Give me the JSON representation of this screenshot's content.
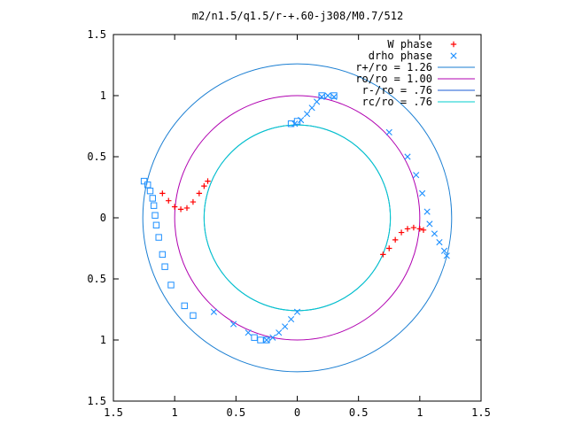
{
  "chart_data": {
    "type": "scatter",
    "title": "m2/n1.5/q1.5/r-+.60-j308/M0.7/512",
    "xlabel": "",
    "ylabel": "",
    "xlim": [
      -1.5,
      1.5
    ],
    "ylim": [
      -1.5,
      1.5
    ],
    "x_ticks": [
      -1.5,
      -1,
      -0.5,
      0,
      0.5,
      1,
      1.5
    ],
    "y_ticks": [
      -1.5,
      -1,
      -0.5,
      0,
      0.5,
      1,
      1.5
    ],
    "x_tick_labels": [
      "1.5",
      "1",
      "0.5",
      "0",
      "0.5",
      "1",
      "1.5"
    ],
    "y_tick_labels": [
      "1.5",
      "1",
      "0.5",
      "0",
      "0.5",
      "1",
      "1.5"
    ],
    "grid": false,
    "legend_position": "top-right",
    "legend": [
      {
        "label": "W phase",
        "marker": "+",
        "color": "#ff0000"
      },
      {
        "label": "drho phase",
        "marker": "x",
        "color": "#1e90ff"
      },
      {
        "label": "r+/ro = 1.26",
        "marker": "line",
        "color": "#1a7ed2"
      },
      {
        "label": "ro/ro = 1.00",
        "marker": "line",
        "color": "#b000b0"
      },
      {
        "label": "r-/ro = .76",
        "marker": "line",
        "color": "#1a5bd6"
      },
      {
        "label": "rc/ro = .76",
        "marker": "line",
        "color": "#00cccc"
      }
    ],
    "circles": [
      {
        "name": "r+/ro = 1.26",
        "radius": 1.26,
        "color": "#1a7ed2"
      },
      {
        "name": "ro/ro = 1.00",
        "radius": 1.0,
        "color": "#b000b0"
      },
      {
        "name": "r-/ro = .76",
        "radius": 0.76,
        "color": "#1a5bd6"
      },
      {
        "name": "rc/ro = .76",
        "radius": 0.76,
        "color": "#00cccc"
      }
    ],
    "series": [
      {
        "name": "W phase",
        "marker": "+",
        "color": "#ff0000",
        "points": [
          [
            -1.1,
            0.2
          ],
          [
            -1.05,
            0.14
          ],
          [
            -1.0,
            0.09
          ],
          [
            -0.95,
            0.07
          ],
          [
            -0.9,
            0.08
          ],
          [
            -0.85,
            0.13
          ],
          [
            -0.8,
            0.2
          ],
          [
            -0.76,
            0.26
          ],
          [
            -0.73,
            0.3
          ],
          [
            0.7,
            -0.3
          ],
          [
            0.75,
            -0.25
          ],
          [
            0.8,
            -0.18
          ],
          [
            0.85,
            -0.12
          ],
          [
            0.9,
            -0.09
          ],
          [
            0.95,
            -0.08
          ],
          [
            1.0,
            -0.09
          ],
          [
            1.03,
            -0.1
          ]
        ]
      },
      {
        "name": "drho phase",
        "marker": "x",
        "color": "#1e90ff",
        "points": [
          [
            -0.02,
            0.77
          ],
          [
            0.03,
            0.8
          ],
          [
            0.08,
            0.85
          ],
          [
            0.12,
            0.9
          ],
          [
            0.16,
            0.95
          ],
          [
            0.2,
            0.99
          ],
          [
            0.25,
            1.0
          ],
          [
            0.3,
            0.99
          ],
          [
            0.75,
            0.7
          ],
          [
            0.9,
            0.5
          ],
          [
            0.97,
            0.35
          ],
          [
            1.02,
            0.2
          ],
          [
            1.06,
            0.05
          ],
          [
            1.08,
            -0.05
          ],
          [
            1.12,
            -0.13
          ],
          [
            1.16,
            -0.2
          ],
          [
            1.2,
            -0.27
          ],
          [
            1.22,
            -0.31
          ],
          [
            -0.25,
            -1.0
          ],
          [
            -0.2,
            -0.98
          ],
          [
            -0.15,
            -0.94
          ],
          [
            -0.1,
            -0.89
          ],
          [
            -0.05,
            -0.83
          ],
          [
            0.0,
            -0.77
          ],
          [
            -0.4,
            -0.94
          ],
          [
            -0.52,
            -0.87
          ],
          [
            -0.68,
            -0.77
          ]
        ]
      },
      {
        "name": "drho phase (squares)",
        "marker": "square",
        "color": "#1e90ff",
        "points": [
          [
            -1.25,
            0.3
          ],
          [
            -1.22,
            0.27
          ],
          [
            -1.2,
            0.22
          ],
          [
            -1.18,
            0.16
          ],
          [
            -1.17,
            0.1
          ],
          [
            -1.16,
            0.02
          ],
          [
            -1.15,
            -0.06
          ],
          [
            -1.13,
            -0.16
          ],
          [
            -1.1,
            -0.3
          ],
          [
            -1.08,
            -0.4
          ],
          [
            -1.03,
            -0.55
          ],
          [
            -0.92,
            -0.72
          ],
          [
            -0.85,
            -0.8
          ],
          [
            -0.05,
            0.77
          ],
          [
            0.0,
            0.79
          ],
          [
            0.2,
            1.0
          ],
          [
            0.3,
            1.0
          ],
          [
            -0.35,
            -0.98
          ],
          [
            -0.3,
            -1.0
          ],
          [
            -0.25,
            -1.0
          ]
        ]
      }
    ]
  }
}
